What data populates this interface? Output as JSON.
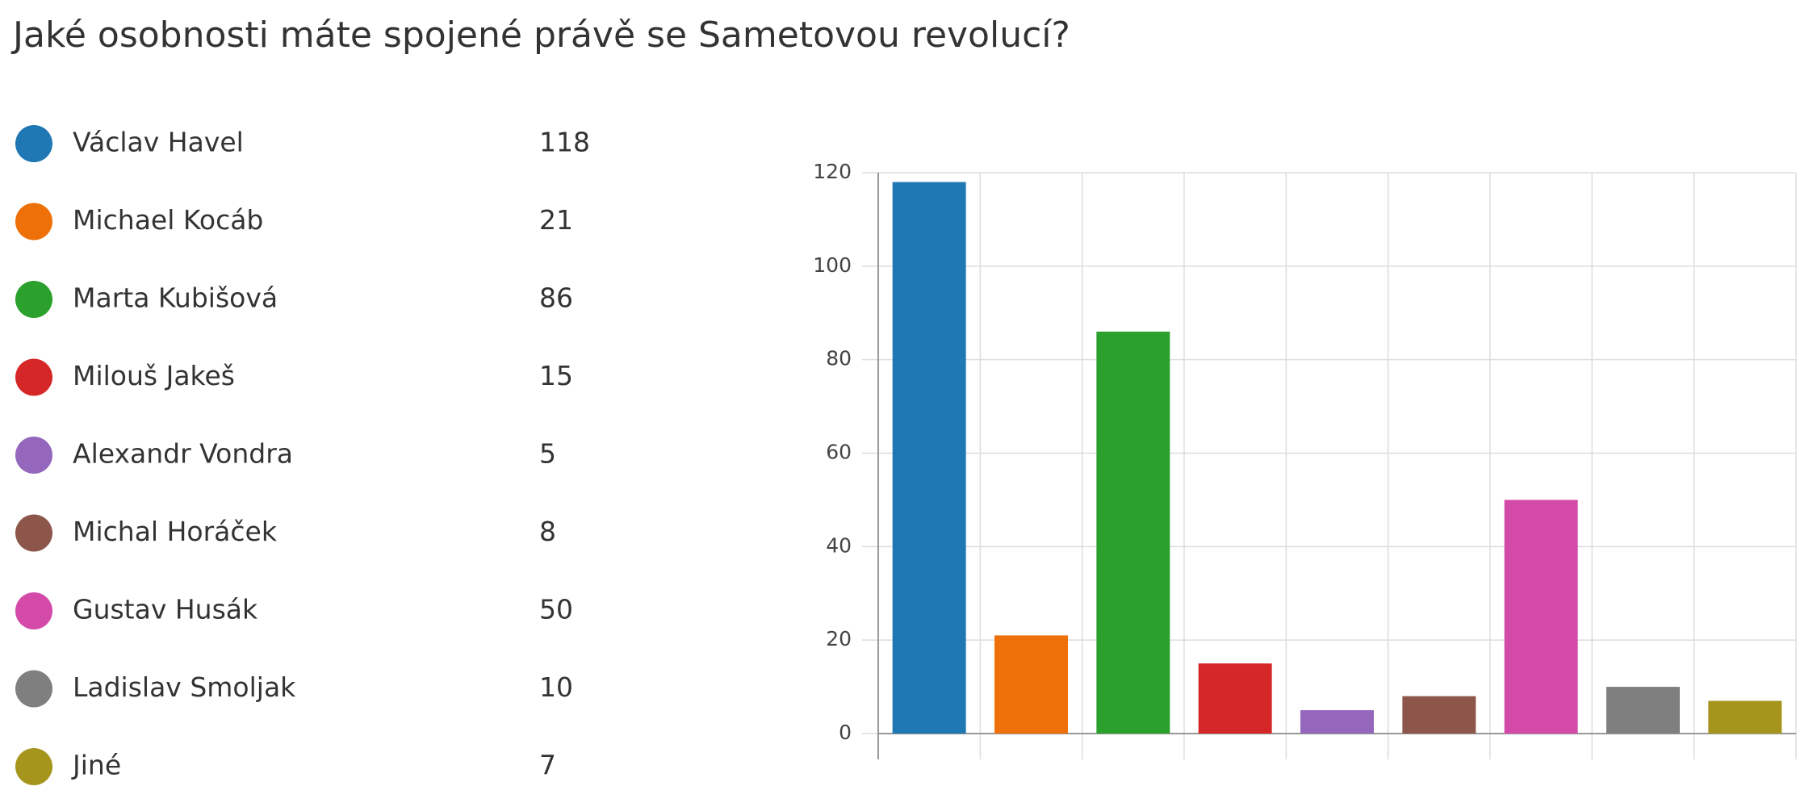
{
  "chart_data": {
    "type": "bar",
    "title": "Jaké osobnosti máte spojené právě se Sametovou revolucí?",
    "categories": [
      "Václav Havel",
      "Michael Kocáb",
      "Marta Kubišová",
      "Milouš Jakeš",
      "Alexandr Vondra",
      "Michal Horáček",
      "Gustav Husák",
      "Ladislav Smoljak",
      "Jiné"
    ],
    "values": [
      118,
      21,
      86,
      15,
      5,
      8,
      50,
      10,
      7
    ],
    "colors": [
      "#1f77b4",
      "#ee7009",
      "#2ca02c",
      "#d62728",
      "#9467bd",
      "#8c564b",
      "#d44aa9",
      "#7f7f7f",
      "#a6951c"
    ],
    "ylim": [
      0,
      120
    ],
    "yticks": [
      0,
      20,
      40,
      60,
      80,
      100,
      120
    ],
    "grid": true
  }
}
